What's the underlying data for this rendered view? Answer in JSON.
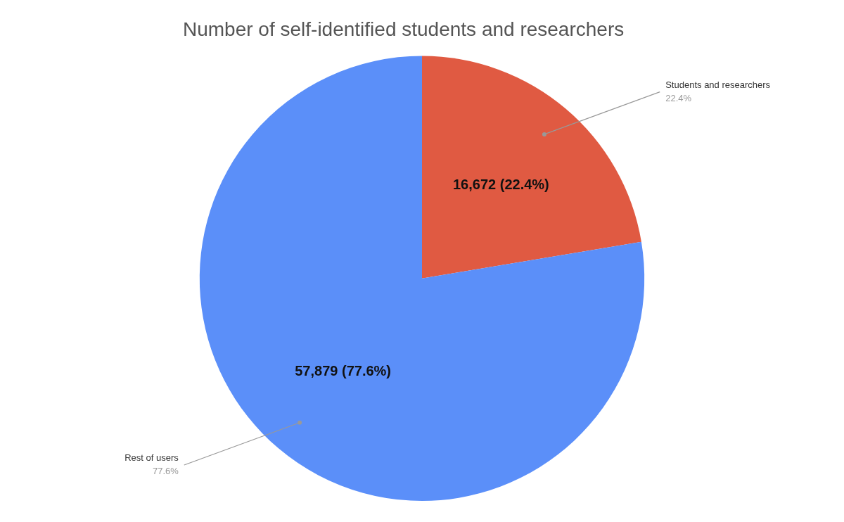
{
  "chart_data": {
    "type": "pie",
    "title": "Number of self-identified students and researchers",
    "categories": [
      "Students and researchers",
      "Rest of users"
    ],
    "values": [
      16672,
      57879
    ],
    "value_labels": [
      "16,672 (22.4%)",
      "57,879 (77.6%)"
    ],
    "percentages": [
      {
        "value": 22.4,
        "label": "22.4%"
      },
      {
        "value": 77.6,
        "label": "77.6%"
      }
    ],
    "colors": [
      "#E05A42",
      "#5B8FF9"
    ],
    "data_labels": true
  }
}
